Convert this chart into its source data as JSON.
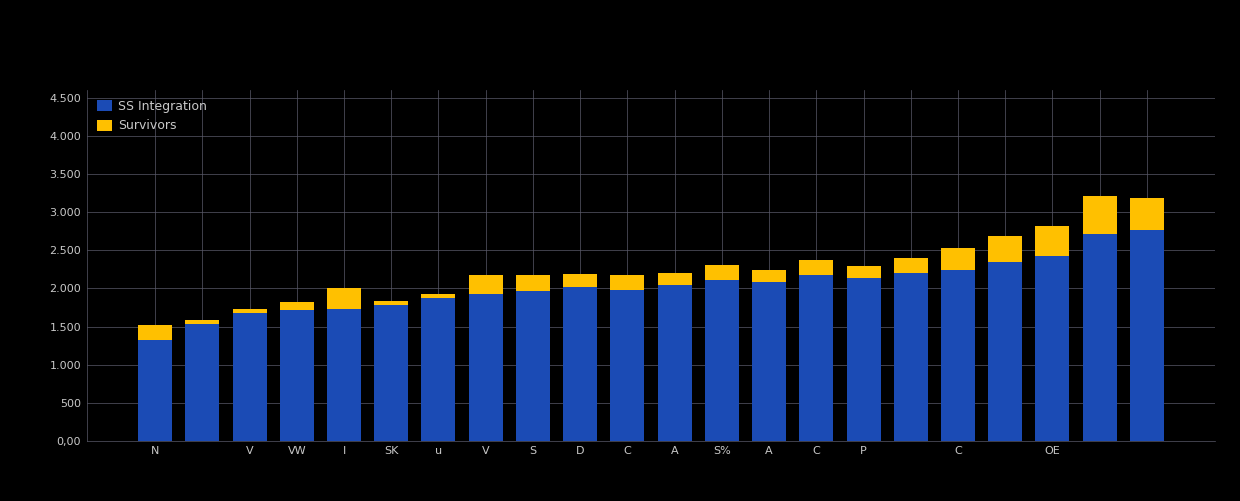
{
  "legend_labels": [
    "SS Integration",
    "Survivors"
  ],
  "bar_colors": [
    "#1B4BB5",
    "#FFC000"
  ],
  "background_color": "#000000",
  "grid_color": "#5A5A6A",
  "text_color": "#C8C8C8",
  "blue_values": [
    1320,
    1530,
    1680,
    1720,
    1730,
    1780,
    1870,
    1930,
    1960,
    2020,
    1980,
    2050,
    2110,
    2080,
    2180,
    2130,
    2200,
    2240,
    2350,
    2430,
    2720,
    2760
  ],
  "yellow_values": [
    200,
    60,
    50,
    100,
    280,
    60,
    60,
    240,
    220,
    170,
    200,
    150,
    200,
    160,
    190,
    170,
    200,
    290,
    340,
    390,
    490,
    430
  ],
  "xlabels": [
    "N",
    "",
    "V",
    "VW",
    "I",
    "SK",
    "u",
    "V",
    "S",
    "D",
    "C",
    "A",
    "S%",
    "A",
    "C",
    "P",
    "",
    "C",
    "",
    "OE",
    "",
    ""
  ],
  "xlabels_show": [
    "N",
    "",
    "V",
    "VW",
    "I",
    "SK",
    "u",
    "V",
    "S",
    "D",
    "C",
    "A",
    "S%",
    "A",
    "C",
    "P",
    "",
    "C",
    "",
    "OE",
    "",
    ""
  ],
  "ylim": [
    0,
    4600
  ],
  "ytick_values": [
    0,
    500,
    1000,
    1500,
    2000,
    2500,
    3000,
    3500,
    4000,
    4500
  ],
  "ytick_labels": [
    "0,00",
    "500",
    "1.000",
    "1.500",
    "2.000",
    "2.500",
    "3.000",
    "3.500",
    "4.000",
    "4.500"
  ],
  "figsize": [
    12.4,
    5.01
  ],
  "dpi": 100
}
